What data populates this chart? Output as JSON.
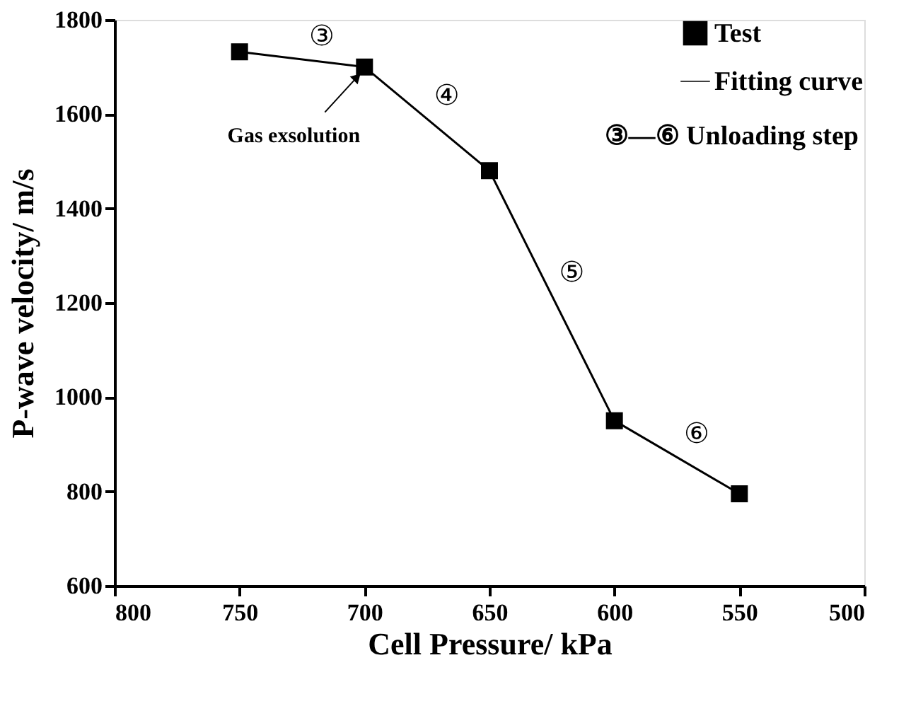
{
  "chart_data": {
    "type": "line",
    "xlabel": "Cell Pressure/ kPa",
    "ylabel": "P-wave velocity/ m/s",
    "x": [
      750,
      700,
      650,
      600,
      550
    ],
    "series": [
      {
        "name": "Test",
        "type": "scatter",
        "marker": "square",
        "color": "#000000",
        "values": [
          1732,
          1700,
          1480,
          950,
          795
        ]
      },
      {
        "name": "Fitting curve",
        "color": "#000000",
        "line_style": "solid",
        "values": [
          1732,
          1700,
          1480,
          950,
          795
        ]
      }
    ],
    "xlim": [
      800,
      500
    ],
    "xticks": [
      800,
      750,
      700,
      650,
      600,
      550,
      500
    ],
    "ylim": [
      600,
      1800
    ],
    "yticks": [
      600,
      800,
      1000,
      1200,
      1400,
      1600,
      1800
    ],
    "grid": false,
    "legend": "top right",
    "annotations": [
      "③",
      "④",
      "⑤",
      "⑥",
      {
        "text": "Gas exsolution",
        "x": 700,
        "y": 1700
      },
      "③—⑥ Unloading step"
    ]
  }
}
